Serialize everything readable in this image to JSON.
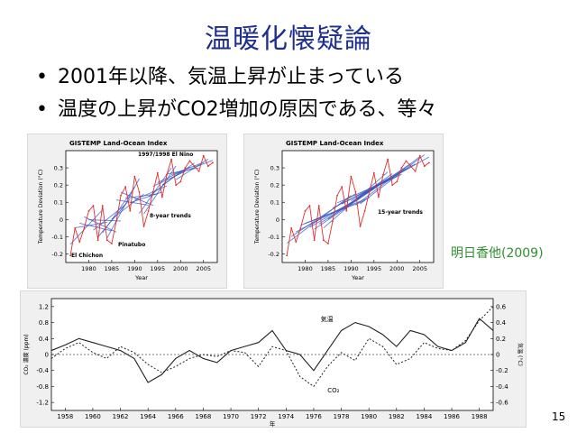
{
  "slide": {
    "title": "温暖化懐疑論",
    "bullets": [
      "2001年以降、気温上昇が止まっている",
      "温度の上昇がCO2増加の原因である、等々"
    ],
    "citation": "明日香他(2009)",
    "page_number": "15"
  },
  "chart_data": [
    {
      "type": "line",
      "title": "GISTEMP Land-Ocean Index",
      "xlabel": "Year",
      "ylabel": "Temperature Deviation (°C)",
      "xlim": [
        1975,
        2008
      ],
      "ylim": [
        -0.25,
        0.4
      ],
      "x_ticks": [
        "1980",
        "1985",
        "1990",
        "1995",
        "2000",
        "2005"
      ],
      "y_ticks": [
        "-0.2",
        "-0.1",
        "0",
        "0.1",
        "0.2",
        "0.3"
      ],
      "annotations": [
        "1997/1998 El Nino",
        "El Chichon",
        "Pinatubo",
        "8-year trends"
      ],
      "series": [
        {
          "x": [
            1976,
            1977,
            1978,
            1979,
            1980,
            1981,
            1982,
            1983,
            1984,
            1985,
            1986,
            1987,
            1988,
            1989,
            1990,
            1991,
            1992,
            1993,
            1994,
            1995,
            1996,
            1997,
            1998,
            1999,
            2000,
            2001,
            2002,
            2003,
            2004,
            2005,
            2006,
            2007
          ],
          "values": [
            -0.21,
            -0.05,
            -0.13,
            -0.05,
            0.05,
            0.08,
            -0.12,
            0.08,
            -0.12,
            -0.14,
            -0.01,
            0.14,
            0.19,
            0.05,
            0.25,
            0.16,
            -0.04,
            0.05,
            0.16,
            0.27,
            0.13,
            0.26,
            0.35,
            0.2,
            0.22,
            0.3,
            0.34,
            0.31,
            0.28,
            0.37,
            0.31,
            0.33
          ]
        }
      ],
      "color": "#e03030",
      "trend_color": "#3050c0"
    },
    {
      "type": "line",
      "title": "GISTEMP Land-Ocean Index",
      "xlabel": "Year",
      "ylabel": "Temperature Deviation (°C)",
      "xlim": [
        1975,
        2008
      ],
      "ylim": [
        -0.25,
        0.4
      ],
      "x_ticks": [
        "1980",
        "1985",
        "1990",
        "1995",
        "2000",
        "2005"
      ],
      "y_ticks": [
        "-0.2",
        "-0.1",
        "0",
        "0.1",
        "0.2",
        "0.3"
      ],
      "annotations": [
        "15-year trends"
      ],
      "series": [
        {
          "x": [
            1976,
            1977,
            1978,
            1979,
            1980,
            1981,
            1982,
            1983,
            1984,
            1985,
            1986,
            1987,
            1988,
            1989,
            1990,
            1991,
            1992,
            1993,
            1994,
            1995,
            1996,
            1997,
            1998,
            1999,
            2000,
            2001,
            2002,
            2003,
            2004,
            2005,
            2006,
            2007
          ],
          "values": [
            -0.21,
            -0.05,
            -0.13,
            -0.05,
            0.05,
            0.08,
            -0.12,
            0.08,
            -0.12,
            -0.14,
            -0.01,
            0.14,
            0.19,
            0.05,
            0.25,
            0.16,
            -0.04,
            0.05,
            0.16,
            0.27,
            0.13,
            0.26,
            0.35,
            0.2,
            0.22,
            0.3,
            0.34,
            0.31,
            0.28,
            0.37,
            0.31,
            0.33
          ]
        }
      ],
      "color": "#e03030",
      "trend_color": "#3050c0"
    },
    {
      "type": "line",
      "title": "",
      "xlabel": "年",
      "ylabel_left": "CO₂ 濃度 (ppm)",
      "ylabel_right": "気温 (°C)",
      "xlim": [
        1957,
        1989
      ],
      "ylim_left": [
        -1.4,
        1.4
      ],
      "ylim_right": [
        -0.7,
        0.7
      ],
      "x_ticks": [
        "1958",
        "1960",
        "1962",
        "1964",
        "1966",
        "1968",
        "1970",
        "1972",
        "1974",
        "1976",
        "1978",
        "1980",
        "1982",
        "1984",
        "1986",
        "1988"
      ],
      "y_ticks_left": [
        "1.2",
        "0.8",
        "0.4",
        "0",
        "-0.4",
        "-0.8",
        "-1.2"
      ],
      "y_ticks_right": [
        "0.6",
        "0.4",
        "0.2",
        "0",
        "-0.2",
        "-0.4",
        "-0.6"
      ],
      "series": [
        {
          "name": "気温",
          "style": "solid",
          "x": [
            1957,
            1958,
            1959,
            1960,
            1961,
            1962,
            1963,
            1964,
            1965,
            1966,
            1967,
            1968,
            1969,
            1970,
            1971,
            1972,
            1973,
            1974,
            1975,
            1976,
            1977,
            1978,
            1979,
            1980,
            1981,
            1982,
            1983,
            1984,
            1985,
            1986,
            1987,
            1988,
            1989
          ],
          "values": [
            0.05,
            0.12,
            0.2,
            0.15,
            0.1,
            0.05,
            -0.05,
            -0.35,
            -0.25,
            -0.05,
            0.05,
            -0.05,
            -0.1,
            0.05,
            0.1,
            0.15,
            0.3,
            0.05,
            0.0,
            -0.2,
            0.05,
            0.3,
            0.4,
            0.35,
            0.25,
            0.1,
            0.3,
            0.25,
            0.1,
            0.05,
            0.15,
            0.45,
            0.3
          ]
        },
        {
          "name": "CO₂",
          "style": "dashed",
          "x": [
            1957,
            1958,
            1959,
            1960,
            1961,
            1962,
            1963,
            1964,
            1965,
            1966,
            1967,
            1968,
            1969,
            1970,
            1971,
            1972,
            1973,
            1974,
            1975,
            1976,
            1977,
            1978,
            1979,
            1980,
            1981,
            1982,
            1983,
            1984,
            1985,
            1986,
            1987,
            1988,
            1989
          ],
          "values": [
            -0.1,
            0.15,
            0.3,
            0.05,
            -0.1,
            0.2,
            0.05,
            -0.25,
            -0.45,
            -0.3,
            -0.1,
            0.0,
            -0.05,
            0.1,
            0.05,
            -0.3,
            0.2,
            0.1,
            -0.55,
            -0.8,
            -0.3,
            0.05,
            -0.15,
            0.4,
            0.2,
            -0.25,
            -0.1,
            0.3,
            0.15,
            0.1,
            0.35,
            0.85,
            1.2
          ]
        }
      ]
    }
  ]
}
